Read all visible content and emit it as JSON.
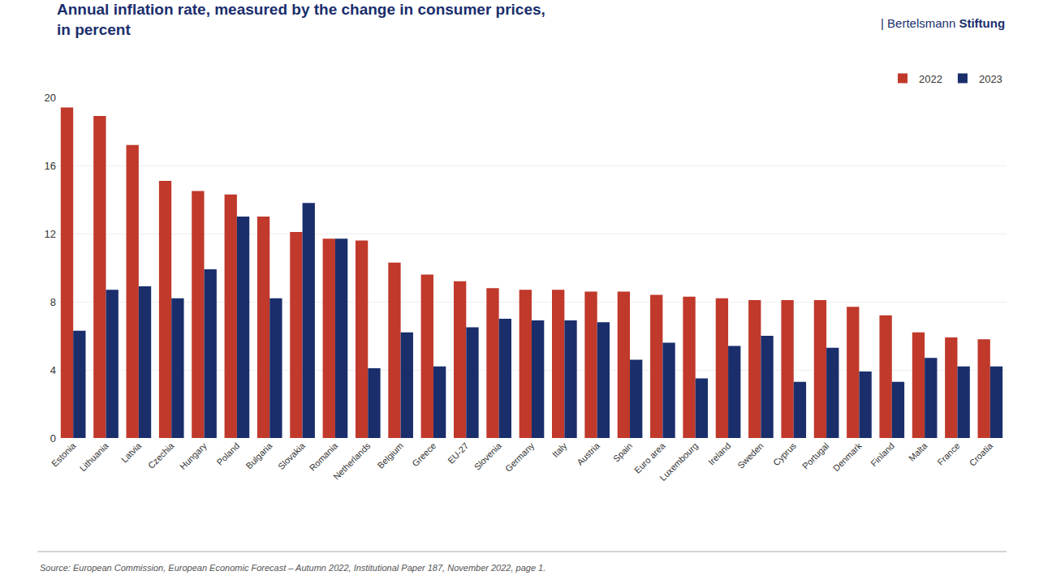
{
  "chart_data": {
    "type": "bar",
    "title": "Annual inflation rate, measured by the change in consumer prices,",
    "subtitle": "in percent",
    "annotations": [
      "| Bertelsmann Stiftung",
      "Source: European Commission, European Economic Forecast – Autumn 2022, Institutional Paper 187, November 2022, page 1."
    ],
    "categories": [
      "Estonia",
      "Lithuania",
      "Latvia",
      "Czechia",
      "Hungary",
      "Poland",
      "Bulgaria",
      "Slovakia",
      "Romania",
      "Netherlands",
      "Belgium",
      "Greece",
      "EU-27",
      "Slovenia",
      "Germany",
      "Italy",
      "Austria",
      "Spain",
      "Euro area",
      "Luxembourg",
      "Ireland",
      "Sweden",
      "Cyprus",
      "Portugal",
      "Denmark",
      "Finland",
      "Malta",
      "France",
      "Croatia"
    ],
    "series": [
      {
        "name": "2022",
        "color": "#c0392b",
        "values": [
          19.4,
          18.9,
          17.2,
          15.1,
          14.5,
          14.3,
          13.0,
          12.1,
          11.7,
          11.6,
          10.3,
          9.6,
          9.2,
          8.8,
          8.7,
          8.7,
          8.6,
          8.6,
          8.4,
          8.3,
          8.2,
          8.1,
          8.1,
          8.1,
          7.7,
          7.2,
          6.2,
          5.9,
          5.8
        ]
      },
      {
        "name": "2023",
        "color": "#1a2e6c",
        "values": [
          6.3,
          8.7,
          8.9,
          8.2,
          9.9,
          13.0,
          8.2,
          13.8,
          11.7,
          4.1,
          6.2,
          4.2,
          6.5,
          7.0,
          6.9,
          6.9,
          6.8,
          4.6,
          5.6,
          3.5,
          5.4,
          6.0,
          3.3,
          5.3,
          3.9,
          3.3,
          4.7,
          4.2,
          4.2
        ]
      }
    ],
    "ylim": [
      0,
      20
    ],
    "yticks": [
      0,
      4,
      8,
      12,
      16,
      20
    ],
    "grid": true,
    "legend": "upper right"
  }
}
